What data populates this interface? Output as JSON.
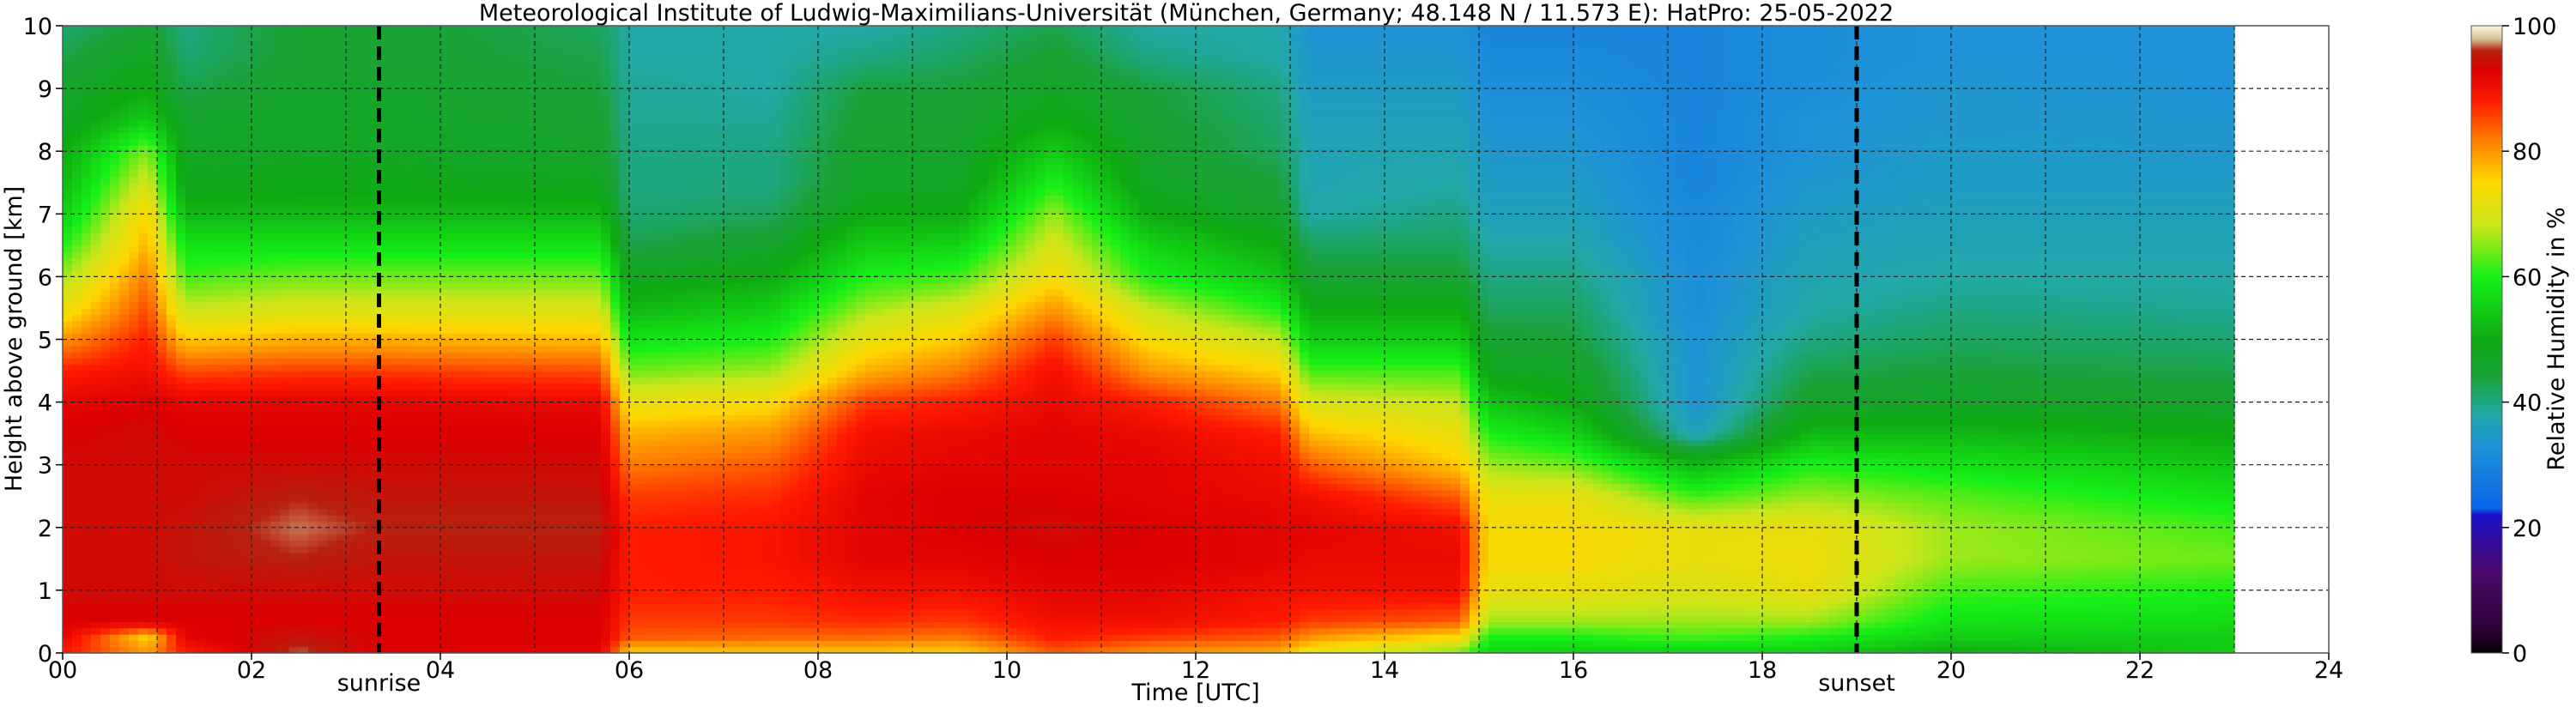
{
  "chart_data": {
    "type": "heatmap",
    "title": "Meteorological Institute of Ludwig-Maximilians-Universität (München, Germany; 48.148 N / 11.573 E):    HatPro: 25-05-2022",
    "xlabel": "Time [UTC]",
    "ylabel": "Height above ground [km]",
    "colorbar_label": "Relative Humidity in %",
    "xlim": [
      0,
      24
    ],
    "ylim": [
      0,
      10
    ],
    "x_ticks": [
      "00",
      "02",
      "04",
      "06",
      "08",
      "10",
      "12",
      "14",
      "16",
      "18",
      "20",
      "22",
      "24"
    ],
    "y_ticks": [
      "0",
      "1",
      "2",
      "3",
      "4",
      "5",
      "6",
      "7",
      "8",
      "9",
      "10"
    ],
    "colorbar_ticks": [
      "0",
      "20",
      "40",
      "60",
      "80",
      "100"
    ],
    "colorbar_range": [
      0,
      100
    ],
    "grid": true,
    "data_end_hour": 23,
    "annotations": [
      {
        "label": "sunrise",
        "x": 3.35
      },
      {
        "label": "sunset",
        "x": 19.0
      }
    ],
    "colormap": [
      {
        "value": 0,
        "color": "#000000"
      },
      {
        "value": 3,
        "color": "#2a0030"
      },
      {
        "value": 13,
        "color": "#4d0a6e"
      },
      {
        "value": 22,
        "color": "#1a10c8"
      },
      {
        "value": 23,
        "color": "#0a64e8"
      },
      {
        "value": 33,
        "color": "#1f93d8"
      },
      {
        "value": 38,
        "color": "#22a8a8"
      },
      {
        "value": 44,
        "color": "#1aa33a"
      },
      {
        "value": 50,
        "color": "#0faa12"
      },
      {
        "value": 60,
        "color": "#16f016"
      },
      {
        "value": 68,
        "color": "#c8e61a"
      },
      {
        "value": 75,
        "color": "#ffd700"
      },
      {
        "value": 82,
        "color": "#ff7a00"
      },
      {
        "value": 88,
        "color": "#ff1a00"
      },
      {
        "value": 93,
        "color": "#dc0000"
      },
      {
        "value": 96,
        "color": "#b82010"
      },
      {
        "value": 98,
        "color": "#d8c8a0"
      },
      {
        "value": 100,
        "color": "#fff2d8"
      }
    ],
    "height_grid_km": [
      0,
      0.25,
      0.5,
      1,
      1.5,
      2,
      2.5,
      3,
      3.5,
      4,
      4.5,
      5,
      5.5,
      6,
      6.5,
      7,
      7.5,
      8,
      8.5,
      9,
      9.5,
      10
    ],
    "profiles": [
      {
        "t": 0.0,
        "rh": [
          88,
          92,
          93,
          94,
          94,
          94,
          94,
          94,
          93,
          92,
          88,
          80,
          72,
          66,
          60,
          55,
          52,
          50,
          47,
          46,
          43,
          41
        ]
      },
      {
        "t": 0.9,
        "rh": [
          80,
          75,
          93,
          94,
          94,
          94,
          94,
          94,
          94,
          93,
          90,
          88,
          85,
          82,
          78,
          75,
          70,
          65,
          55,
          50,
          48,
          45
        ]
      },
      {
        "t": 1.3,
        "rh": [
          88,
          92,
          93,
          94,
          95,
          95,
          94,
          94,
          93,
          92,
          85,
          76,
          68,
          62,
          58,
          52,
          48,
          47,
          46,
          43,
          41,
          40
        ]
      },
      {
        "t": 2.5,
        "rh": [
          97,
          95,
          93,
          94,
          96,
          97,
          96,
          94,
          93,
          92,
          86,
          78,
          70,
          64,
          58,
          52,
          49,
          47,
          47,
          46,
          45,
          45
        ]
      },
      {
        "t": 3.35,
        "rh": [
          93,
          93,
          93,
          94,
          95,
          96,
          95,
          94,
          93,
          92,
          86,
          78,
          70,
          64,
          58,
          52,
          49,
          47,
          47,
          46,
          45,
          45
        ]
      },
      {
        "t": 5.7,
        "rh": [
          92,
          93,
          93,
          94,
          95,
          96,
          95,
          94,
          93,
          91,
          85,
          77,
          70,
          64,
          58,
          52,
          48,
          46,
          45,
          44,
          43,
          42
        ]
      },
      {
        "t": 6.0,
        "rh": [
          75,
          84,
          86,
          88,
          88,
          88,
          86,
          82,
          78,
          72,
          64,
          58,
          52,
          48,
          43,
          41,
          40,
          40,
          39,
          39,
          38,
          38
        ]
      },
      {
        "t": 7.5,
        "rh": [
          76,
          83,
          86,
          88,
          89,
          89,
          87,
          84,
          80,
          74,
          66,
          60,
          55,
          50,
          46,
          42,
          40,
          40,
          39,
          38,
          38,
          38
        ]
      },
      {
        "t": 8.5,
        "rh": [
          76,
          83,
          87,
          90,
          92,
          92,
          92,
          91,
          90,
          86,
          78,
          72,
          66,
          60,
          55,
          50,
          47,
          46,
          45,
          44,
          40,
          38
        ]
      },
      {
        "t": 9.5,
        "rh": [
          75,
          82,
          86,
          90,
          92,
          93,
          93,
          92,
          91,
          88,
          82,
          76,
          70,
          62,
          56,
          50,
          47,
          46,
          45,
          44,
          42,
          40
        ]
      },
      {
        "t": 10.5,
        "rh": [
          84,
          88,
          90,
          92,
          93,
          94,
          93,
          92,
          92,
          91,
          90,
          86,
          80,
          74,
          70,
          66,
          60,
          55,
          50,
          47,
          45,
          43
        ]
      },
      {
        "t": 11.5,
        "rh": [
          80,
          86,
          90,
          92,
          93,
          93,
          92,
          92,
          91,
          88,
          80,
          74,
          68,
          60,
          56,
          50,
          47,
          46,
          45,
          44,
          40,
          38
        ]
      },
      {
        "t": 12.9,
        "rh": [
          78,
          84,
          88,
          90,
          92,
          92,
          91,
          90,
          88,
          82,
          75,
          68,
          60,
          54,
          50,
          46,
          44,
          42,
          41,
          40,
          38,
          38
        ]
      },
      {
        "t": 13.2,
        "rh": [
          72,
          80,
          86,
          90,
          91,
          92,
          90,
          84,
          77,
          70,
          62,
          55,
          50,
          45,
          42,
          38,
          37,
          37,
          36,
          35,
          34,
          33
        ]
      },
      {
        "t": 14.8,
        "rh": [
          64,
          74,
          84,
          90,
          91,
          90,
          84,
          76,
          72,
          68,
          62,
          55,
          50,
          45,
          42,
          40,
          38,
          37,
          36,
          35,
          34,
          33
        ]
      },
      {
        "t": 15.1,
        "rh": [
          56,
          60,
          66,
          72,
          74,
          74,
          72,
          66,
          60,
          54,
          48,
          45,
          42,
          40,
          38,
          36,
          35,
          34,
          33,
          32,
          31,
          30
        ]
      },
      {
        "t": 16.0,
        "rh": [
          55,
          60,
          66,
          72,
          74,
          74,
          72,
          64,
          56,
          50,
          47,
          44,
          42,
          40,
          38,
          36,
          35,
          34,
          33,
          32,
          31,
          30
        ]
      },
      {
        "t": 17.3,
        "rh": [
          55,
          62,
          66,
          70,
          72,
          72,
          62,
          52,
          36,
          33,
          33,
          33,
          32,
          32,
          31,
          31,
          30,
          30,
          30,
          30,
          30,
          30
        ]
      },
      {
        "t": 18.5,
        "rh": [
          55,
          60,
          66,
          72,
          73,
          72,
          66,
          60,
          52,
          46,
          43,
          40,
          38,
          37,
          36,
          35,
          34,
          33,
          33,
          32,
          32,
          32
        ]
      },
      {
        "t": 20.0,
        "rh": [
          50,
          55,
          58,
          62,
          66,
          66,
          63,
          58,
          52,
          47,
          44,
          42,
          40,
          38,
          37,
          36,
          35,
          35,
          34,
          34,
          33,
          33
        ]
      },
      {
        "t": 23.0,
        "rh": [
          55,
          55,
          57,
          60,
          64,
          62,
          58,
          54,
          50,
          46,
          43,
          41,
          39,
          38,
          37,
          36,
          35,
          34,
          34,
          33,
          33,
          33
        ]
      }
    ]
  }
}
